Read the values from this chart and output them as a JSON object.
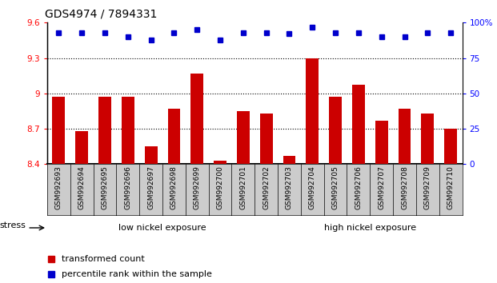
{
  "title": "GDS4974 / 7894331",
  "samples": [
    "GSM992693",
    "GSM992694",
    "GSM992695",
    "GSM992696",
    "GSM992697",
    "GSM992698",
    "GSM992699",
    "GSM992700",
    "GSM992701",
    "GSM992702",
    "GSM992703",
    "GSM992704",
    "GSM992705",
    "GSM992706",
    "GSM992707",
    "GSM992708",
    "GSM992709",
    "GSM992710"
  ],
  "red_values": [
    8.97,
    8.68,
    8.97,
    8.97,
    8.55,
    8.87,
    9.17,
    8.43,
    8.85,
    8.83,
    8.47,
    9.3,
    8.97,
    9.07,
    8.77,
    8.87,
    8.83,
    8.7
  ],
  "blue_values": [
    93,
    93,
    93,
    90,
    88,
    93,
    95,
    88,
    93,
    93,
    92,
    97,
    93,
    93,
    90,
    90,
    93,
    93
  ],
  "ylim_left": [
    8.4,
    9.6
  ],
  "ylim_right": [
    0,
    100
  ],
  "yticks_left": [
    8.4,
    8.7,
    9.0,
    9.3,
    9.6
  ],
  "yticks_right": [
    0,
    25,
    50,
    75,
    100
  ],
  "ytick_labels_left": [
    "8.4",
    "8.7",
    "9",
    "9.3",
    "9.6"
  ],
  "ytick_labels_right": [
    "0",
    "25",
    "50",
    "75",
    "100%"
  ],
  "hlines": [
    8.7,
    9.0,
    9.3
  ],
  "group1_label": "low nickel exposure",
  "group2_label": "high nickel exposure",
  "group1_count": 10,
  "total_count": 18,
  "stress_label": "stress",
  "legend_red": "transformed count",
  "legend_blue": "percentile rank within the sample",
  "bar_color": "#cc0000",
  "dot_color": "#0000cc",
  "group1_color": "#bbeebb",
  "group2_color": "#44cc44",
  "xtick_bg": "#cccccc",
  "plot_bg": "#ffffff",
  "title_fontsize": 10,
  "tick_fontsize": 7.5,
  "label_fontsize": 9
}
